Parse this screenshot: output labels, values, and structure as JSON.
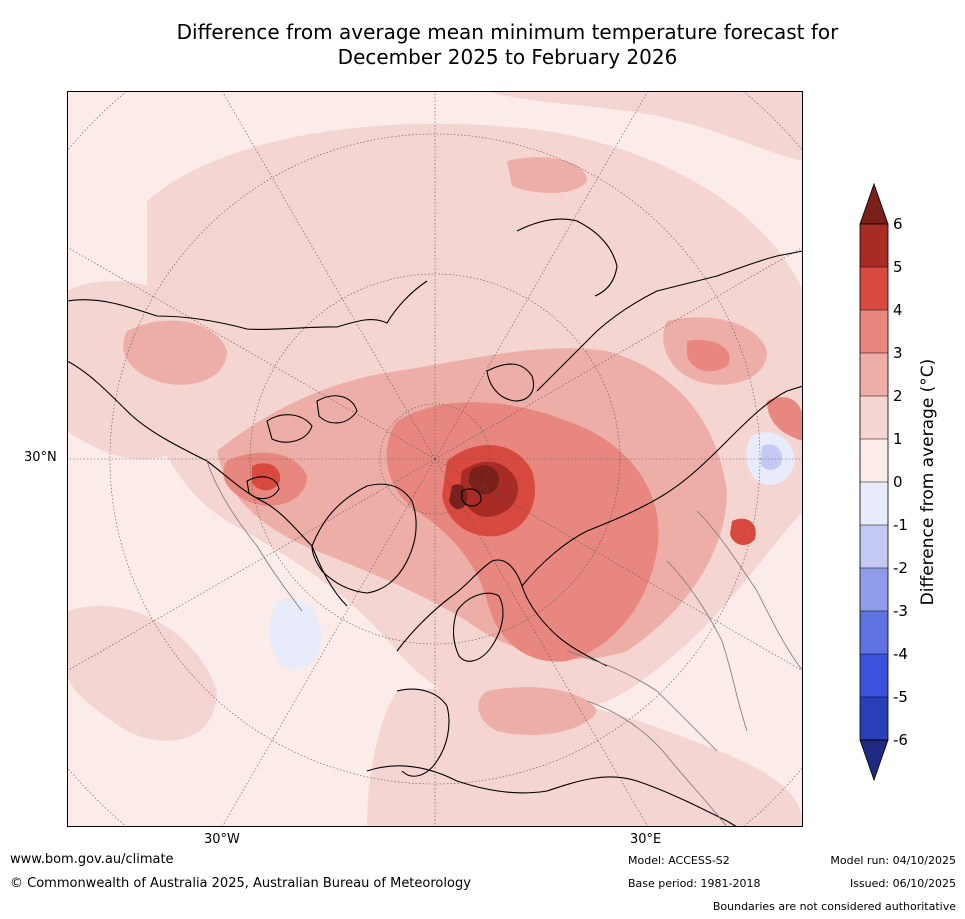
{
  "title": {
    "line1": "Difference from average mean minimum temperature forecast for",
    "line2": "December 2025 to February 2026"
  },
  "map": {
    "projection": "north-polar-stereographic",
    "lat_label": "30°N",
    "lon_labels": [
      "30°W",
      "30°E"
    ]
  },
  "colorbar": {
    "title": "Difference from average (°C)",
    "ticks": [
      "6",
      "5",
      "4",
      "3",
      "2",
      "1",
      "0",
      "-1",
      "-2",
      "-3",
      "-4",
      "-5",
      "-6"
    ],
    "colors": {
      "over": "#7a1f1a",
      "5_6": "#a82c25",
      "4_5": "#d84a40",
      "3_4": "#e8877f",
      "2_3": "#eeaea8",
      "1_2": "#f5d5d2",
      "0_1": "#fbecea",
      "m1_0": "#e8ebfa",
      "m2_m1": "#c3c9f3",
      "m3_m2": "#8f9cea",
      "m4_m3": "#5f72e2",
      "m5_m4": "#3a52dc",
      "m6_m5": "#283fb7",
      "under": "#1e2b80"
    }
  },
  "footer": {
    "website": "www.bom.gov.au/climate",
    "copyright": "© Commonwealth of Australia 2025, Australian Bureau of Meteorology",
    "model": "Model: ACCESS-S2",
    "base_period": "Base period: 1981-2018",
    "model_run": "Model run: 04/10/2025",
    "issued": "Issued: 06/10/2025",
    "disclaimer": "Boundaries are not considered authoritative"
  }
}
